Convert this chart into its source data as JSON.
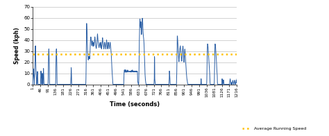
{
  "title": "",
  "xlabel": "Time (seconds)",
  "ylabel": "Speed (kph)",
  "avg_speed": 27,
  "ylim": [
    0,
    70
  ],
  "xlim": [
    1,
    1216
  ],
  "xticks": [
    1,
    46,
    91,
    136,
    181,
    226,
    271,
    316,
    361,
    406,
    451,
    496,
    541,
    586,
    631,
    676,
    721,
    766,
    811,
    856,
    901,
    946,
    991,
    1036,
    1081,
    1126,
    1171,
    1216
  ],
  "yticks": [
    0,
    10,
    20,
    30,
    40,
    50,
    60,
    70
  ],
  "line_color": "#2B5FA5",
  "avg_color": "#FFC000",
  "legend_label": "Average Running Speed",
  "background_color": "#ffffff",
  "grid_color": "#C0C0C0"
}
